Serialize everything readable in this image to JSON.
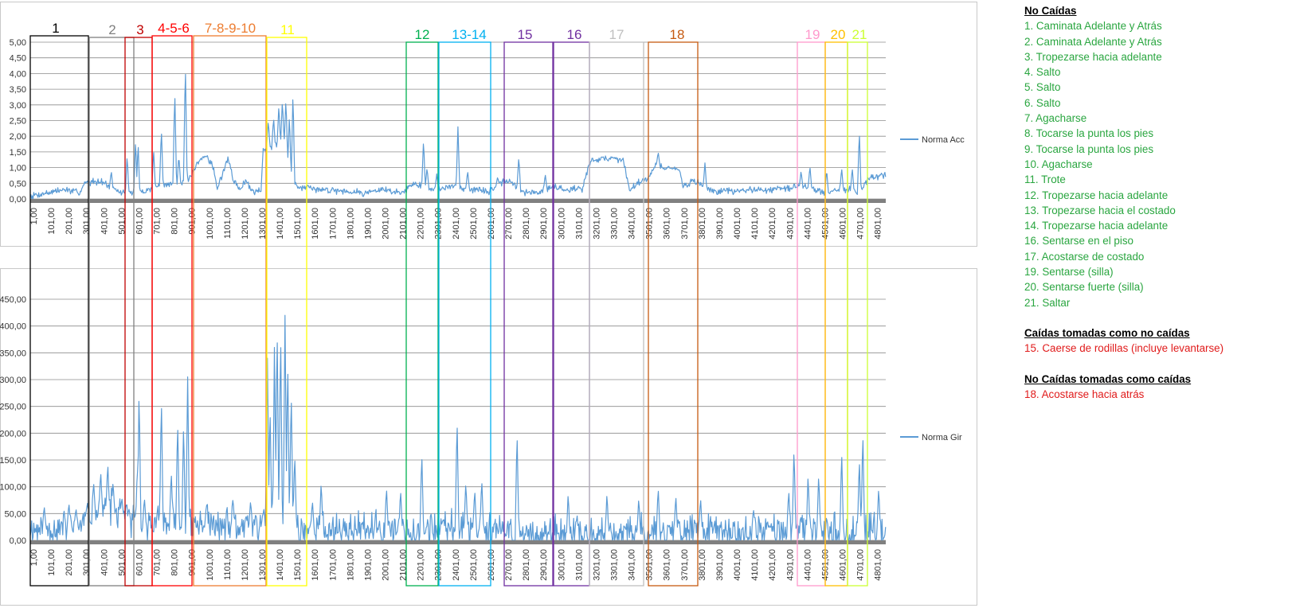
{
  "colors": {
    "line": "#5b9bd5",
    "grid": "#8c8c8c",
    "axis_band": "#808080",
    "green_text": "#2aa640",
    "red_text": "#e01b1b"
  },
  "chart_data": [
    {
      "type": "line",
      "legend": "Norma Acc",
      "legend_position": "right",
      "grid": true,
      "ylim": [
        0,
        5
      ],
      "yticks": [
        "0,00",
        "0,50",
        "1,00",
        "1,50",
        "2,00",
        "2,50",
        "3,00",
        "3,50",
        "4,00",
        "4,50",
        "5,00"
      ],
      "xlim": [
        1,
        4850
      ],
      "xticks": [
        "1,00",
        "101,00",
        "201,00",
        "301,00",
        "401,00",
        "501,00",
        "601,00",
        "701,00",
        "801,00",
        "901,00",
        "1001,00",
        "1101,00",
        "1201,00",
        "1301,00",
        "1401,00",
        "1501,00",
        "1601,00",
        "1701,00",
        "1801,00",
        "1901,00",
        "2001,00",
        "2101,00",
        "2201,00",
        "2301,00",
        "2401,00",
        "2501,00",
        "2601,00",
        "2701,00",
        "2801,00",
        "2901,00",
        "3001,00",
        "3101,00",
        "3201,00",
        "3301,00",
        "3401,00",
        "3501,00",
        "3601,00",
        "3701,00",
        "3801,00",
        "3901,00",
        "4001,00",
        "4101,00",
        "4201,00",
        "4301,00",
        "4401,00",
        "4501,00",
        "4601,00",
        "4701,00",
        "4801,00"
      ],
      "baseline": [
        [
          1,
          0.1
        ],
        [
          100,
          0.2
        ],
        [
          200,
          0.3
        ],
        [
          280,
          0.2
        ],
        [
          310,
          0.5
        ],
        [
          400,
          0.6
        ],
        [
          470,
          0.3
        ],
        [
          520,
          0.2
        ],
        [
          620,
          0.2
        ],
        [
          720,
          0.4
        ],
        [
          820,
          0.5
        ],
        [
          900,
          0.6
        ],
        [
          960,
          1.2
        ],
        [
          1000,
          1.4
        ],
        [
          1040,
          1.0
        ],
        [
          1060,
          0.3
        ],
        [
          1120,
          1.3
        ],
        [
          1160,
          0.5
        ],
        [
          1190,
          0.3
        ],
        [
          1220,
          0.6
        ],
        [
          1260,
          0.25
        ],
        [
          1310,
          0.3
        ],
        [
          1320,
          1.6
        ],
        [
          1440,
          1.8
        ],
        [
          1480,
          0.6
        ],
        [
          1520,
          0.4
        ],
        [
          1600,
          0.3
        ],
        [
          1700,
          0.3
        ],
        [
          1800,
          0.25
        ],
        [
          1900,
          0.2
        ],
        [
          2000,
          0.3
        ],
        [
          2100,
          0.2
        ],
        [
          2180,
          0.5
        ],
        [
          2230,
          0.4
        ],
        [
          2300,
          0.3
        ],
        [
          2400,
          0.4
        ],
        [
          2500,
          0.3
        ],
        [
          2600,
          0.25
        ],
        [
          2700,
          0.6
        ],
        [
          2760,
          0.4
        ],
        [
          2800,
          0.2
        ],
        [
          2880,
          0.2
        ],
        [
          2960,
          0.4
        ],
        [
          3040,
          0.3
        ],
        [
          3130,
          0.35
        ],
        [
          3180,
          1.25
        ],
        [
          3280,
          1.3
        ],
        [
          3360,
          1.25
        ],
        [
          3400,
          0.3
        ],
        [
          3440,
          0.5
        ],
        [
          3510,
          0.7
        ],
        [
          3540,
          1.1
        ],
        [
          3600,
          1.0
        ],
        [
          3680,
          0.9
        ],
        [
          3700,
          0.4
        ],
        [
          3760,
          0.6
        ],
        [
          3840,
          0.3
        ],
        [
          3880,
          0.25
        ],
        [
          4000,
          0.25
        ],
        [
          4100,
          0.3
        ],
        [
          4150,
          0.3
        ],
        [
          4220,
          0.3
        ],
        [
          4300,
          0.35
        ],
        [
          4380,
          0.4
        ],
        [
          4450,
          0.3
        ],
        [
          4520,
          0.2
        ],
        [
          4580,
          0.3
        ],
        [
          4640,
          0.3
        ],
        [
          4700,
          0.2
        ],
        [
          4760,
          0.7
        ],
        [
          4850,
          0.75
        ]
      ],
      "peaks": [
        [
          460,
          0.9
        ],
        [
          550,
          1.4
        ],
        [
          598,
          1.9
        ],
        [
          612,
          1.8
        ],
        [
          700,
          1.6
        ],
        [
          744,
          2.25
        ],
        [
          820,
          3.5
        ],
        [
          843,
          1.4
        ],
        [
          880,
          4.35
        ],
        [
          1350,
          2.5
        ],
        [
          1380,
          2.6
        ],
        [
          1410,
          3.0
        ],
        [
          1430,
          3.15
        ],
        [
          1450,
          3.2
        ],
        [
          1470,
          2.7
        ],
        [
          1490,
          3.45
        ],
        [
          2230,
          1.9
        ],
        [
          2250,
          1.0
        ],
        [
          2305,
          0.8
        ],
        [
          2425,
          2.3
        ],
        [
          2480,
          0.9
        ],
        [
          2650,
          0.7
        ],
        [
          2770,
          1.35
        ],
        [
          2920,
          0.8
        ],
        [
          3560,
          1.5
        ],
        [
          3620,
          1.0
        ],
        [
          3825,
          1.15
        ],
        [
          4370,
          0.9
        ],
        [
          4420,
          1.05
        ],
        [
          4515,
          0.95
        ],
        [
          4600,
          1.0
        ],
        [
          4660,
          1.0
        ],
        [
          4700,
          2.2
        ]
      ],
      "noise": 0.1,
      "seed": 7
    },
    {
      "type": "line",
      "legend": "Norma Gir",
      "legend_position": "right",
      "grid": true,
      "ylim": [
        0,
        450
      ],
      "yticks": [
        "0,00",
        "50,00",
        "100,00",
        "150,00",
        "200,00",
        "250,00",
        "300,00",
        "350,00",
        "400,00",
        "450,00"
      ],
      "xlim": [
        1,
        4850
      ],
      "xticks": [
        "1,00",
        "101,00",
        "201,00",
        "301,00",
        "401,00",
        "501,00",
        "601,00",
        "701,00",
        "801,00",
        "901,00",
        "1001,00",
        "1101,00",
        "1201,00",
        "1301,00",
        "1401,00",
        "1501,00",
        "1601,00",
        "1701,00",
        "1801,00",
        "1901,00",
        "2001,00",
        "2101,00",
        "2201,00",
        "2301,00",
        "2401,00",
        "2501,00",
        "2601,00",
        "2701,00",
        "2801,00",
        "2901,00",
        "3001,00",
        "3101,00",
        "3201,00",
        "3301,00",
        "3401,00",
        "3501,00",
        "3601,00",
        "3701,00",
        "3801,00",
        "3901,00",
        "4001,00",
        "4101,00",
        "4201,00",
        "4301,00",
        "4401,00",
        "4501,00",
        "4601,00",
        "4701,00",
        "4801,00"
      ],
      "baseline": [
        [
          1,
          20
        ],
        [
          300,
          30
        ],
        [
          320,
          50
        ],
        [
          450,
          60
        ],
        [
          600,
          30
        ],
        [
          1300,
          25
        ],
        [
          1320,
          40
        ],
        [
          1500,
          40
        ],
        [
          1520,
          20
        ],
        [
          2100,
          20
        ],
        [
          2500,
          25
        ],
        [
          2700,
          15
        ],
        [
          2900,
          10
        ],
        [
          3100,
          5
        ],
        [
          3500,
          15
        ],
        [
          3800,
          20
        ],
        [
          4000,
          10
        ],
        [
          4200,
          20
        ],
        [
          4850,
          15
        ]
      ],
      "peaks": [
        [
          80,
          65
        ],
        [
          220,
          70
        ],
        [
          260,
          60
        ],
        [
          360,
          110
        ],
        [
          400,
          130
        ],
        [
          440,
          145
        ],
        [
          470,
          110
        ],
        [
          520,
          80
        ],
        [
          560,
          60
        ],
        [
          608,
          140
        ],
        [
          618,
          285
        ],
        [
          648,
          80
        ],
        [
          744,
          270
        ],
        [
          800,
          130
        ],
        [
          836,
          225
        ],
        [
          870,
          222
        ],
        [
          893,
          305
        ],
        [
          1000,
          70
        ],
        [
          1150,
          80
        ],
        [
          1250,
          75
        ],
        [
          1345,
          340
        ],
        [
          1360,
          250
        ],
        [
          1385,
          360
        ],
        [
          1400,
          405
        ],
        [
          1420,
          395
        ],
        [
          1445,
          420
        ],
        [
          1460,
          340
        ],
        [
          1480,
          280
        ],
        [
          1500,
          160
        ],
        [
          1600,
          75
        ],
        [
          1650,
          110
        ],
        [
          2020,
          100
        ],
        [
          2100,
          95
        ],
        [
          2220,
          165
        ],
        [
          2420,
          230
        ],
        [
          2470,
          110
        ],
        [
          2520,
          95
        ],
        [
          2560,
          115
        ],
        [
          2760,
          205
        ],
        [
          3050,
          90
        ],
        [
          3100,
          50
        ],
        [
          3270,
          90
        ],
        [
          3450,
          80
        ],
        [
          3560,
          100
        ],
        [
          3660,
          85
        ],
        [
          3800,
          80
        ],
        [
          4100,
          60
        ],
        [
          4300,
          95
        ],
        [
          4330,
          175
        ],
        [
          4410,
          125
        ],
        [
          4470,
          125
        ],
        [
          4600,
          170
        ],
        [
          4700,
          155
        ],
        [
          4720,
          205
        ],
        [
          4810,
          100
        ]
      ],
      "noise": 30,
      "seed": 11
    }
  ],
  "box_labels": [
    "1",
    "2",
    "3",
    "4-5-6",
    "7-8-9-10",
    "11",
    "12",
    "13-14",
    "15",
    "16",
    "17",
    "18",
    "19",
    "20",
    "21"
  ],
  "box_colors": [
    "#000000",
    "#7f7f7f",
    "#c00000",
    "#ff0000",
    "#ed7d31",
    "#ffff00",
    "#00b050",
    "#00b0f0",
    "#7030a0",
    "#7030a0",
    "#bfbfbf",
    "#c55a11",
    "#ff99cc",
    "#ffc000",
    "#ccff33"
  ],
  "notes": {
    "no_caidas": {
      "header": "No Caídas",
      "items": [
        "1. Caminata Adelante y Atrás",
        "2. Caminata Adelante y Atrás",
        "3. Tropezarse hacia adelante",
        "4. Salto",
        "5. Salto",
        "6. Salto",
        "7. Agacharse",
        "8. Tocarse la punta los pies",
        "9. Tocarse la punta los pies",
        "10. Agacharse",
        "11. Trote",
        "12. Tropezarse hacia adelante",
        "13. Tropezarse hacia el costado",
        "14. Tropezarse hacia adelante",
        "16. Sentarse en el piso",
        "17. Acostarse de costado",
        "19. Sentarse (silla)",
        "20. Sentarse fuerte (silla)",
        "21. Saltar"
      ]
    },
    "caidas_como_no": {
      "header": "Caídas tomadas como no caídas",
      "items": [
        "15. Caerse de rodillas (incluye levantarse)"
      ]
    },
    "no_caidas_como_caidas": {
      "header": "No Caídas tomadas como caídas",
      "items": [
        "18. Acostarse hacia atrás"
      ]
    }
  }
}
